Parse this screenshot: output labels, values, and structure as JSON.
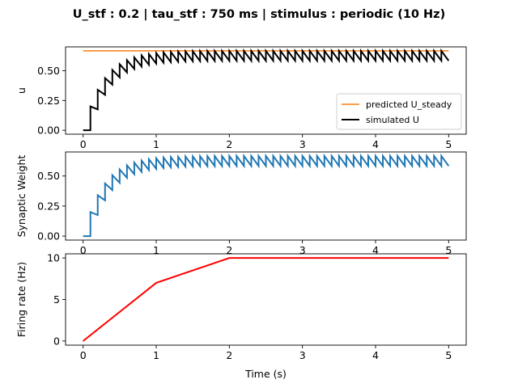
{
  "title": "U_stf : 0.2 | tau_stf : 750 ms | stimulus : periodic (10 Hz)",
  "chart_data": [
    {
      "type": "line",
      "ylabel": "u",
      "xlim": [
        -0.24,
        5.24
      ],
      "ylim": [
        -0.033,
        0.7
      ],
      "xticks": [
        0,
        1,
        2,
        3,
        4,
        5
      ],
      "yticks": [
        0.0,
        0.25,
        0.5
      ],
      "ytick_labels": [
        "0.00",
        "0.25",
        "0.50"
      ],
      "legend": {
        "placement": "lower right",
        "entries": [
          "predicted U_steady",
          "simulated U"
        ]
      },
      "series": [
        {
          "name": "predicted U_steady",
          "color": "#ff7f0e",
          "kind": "constant",
          "y": 0.667,
          "x_range": [
            0,
            5
          ]
        },
        {
          "name": "simulated U",
          "color": "#000000",
          "kind": "facilitation",
          "U": 0.2,
          "tau_s": 0.75,
          "onset_s": 0.1,
          "period_s": 0.1,
          "x_range": [
            0,
            5
          ]
        }
      ]
    },
    {
      "type": "line",
      "ylabel": "Synaptic Weight",
      "xlim": [
        -0.24,
        5.24
      ],
      "ylim": [
        -0.033,
        0.7
      ],
      "xticks": [
        0,
        1,
        2,
        3,
        4,
        5
      ],
      "yticks": [
        0.0,
        0.25,
        0.5
      ],
      "ytick_labels": [
        "0.00",
        "0.25",
        "0.50"
      ],
      "series": [
        {
          "color": "#1f77b4",
          "kind": "facilitation",
          "U": 0.2,
          "tau_s": 0.75,
          "onset_s": 0.1,
          "period_s": 0.1,
          "x_range": [
            0,
            5
          ]
        }
      ]
    },
    {
      "type": "line",
      "ylabel": "Firing rate (Hz)",
      "xlabel": "Time (s)",
      "xlim": [
        -0.24,
        5.24
      ],
      "ylim": [
        -0.5,
        10.5
      ],
      "xticks": [
        0,
        1,
        2,
        3,
        4,
        5
      ],
      "yticks": [
        0,
        5,
        10
      ],
      "ytick_labels": [
        "0",
        "5",
        "10"
      ],
      "series": [
        {
          "color": "#ff0000",
          "kind": "points",
          "x": [
            0,
            1,
            2,
            3,
            4,
            5
          ],
          "y": [
            0,
            7,
            10,
            10,
            10,
            10
          ]
        }
      ]
    }
  ]
}
